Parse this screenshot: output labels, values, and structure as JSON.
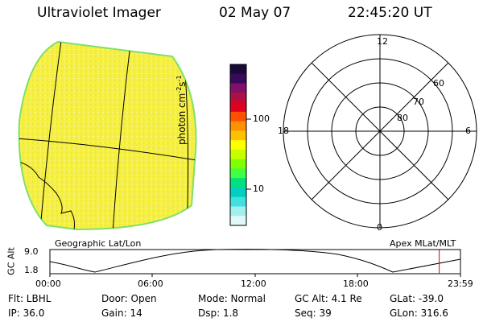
{
  "header": {
    "title": "Ultraviolet Imager",
    "date": "02 May 07",
    "time": "22:45:20 UT"
  },
  "colorbar": {
    "label": "photon cm",
    "label_exp1": "-2",
    "label_mid": "s",
    "label_exp2": "-1",
    "ticks": [
      "100",
      "10"
    ],
    "colors": [
      "#1a0a3a",
      "#3a0a5a",
      "#80106a",
      "#b01040",
      "#e00020",
      "#ff5000",
      "#ff9000",
      "#ffc000",
      "#ffff00",
      "#c8ff00",
      "#80ff00",
      "#40ff40",
      "#00e080",
      "#00d0c0",
      "#40e0e0",
      "#a0f0f0",
      "#e0f8f8"
    ]
  },
  "image": {
    "fill_color": "#f2ee3a",
    "edge_color": "#7fe06a",
    "caption": "Geographic Lat/Lon"
  },
  "polar": {
    "caption": "Apex MLat/MLT",
    "mlt_labels": {
      "top": "12",
      "bottom": "0",
      "left": "18",
      "right": "6"
    },
    "lat_labels": [
      "60",
      "70",
      "80"
    ]
  },
  "altitude_plot": {
    "ylabel": "GC Alt",
    "yticks": [
      "9.0",
      "1.8"
    ],
    "xticks": [
      "00:00",
      "06:00",
      "12:00",
      "18:00",
      "23:59"
    ],
    "marker_color": "#d00000",
    "marker_time_hours": 22.76
  },
  "status": {
    "flt": "Flt: LBHL",
    "ip": "IP: 36.0",
    "door": "Door: Open",
    "gain": "Gain: 14",
    "mode": "Mode: Normal",
    "dsp": "Dsp:    1.8",
    "gcalt": "GC Alt: 4.1 Re",
    "seq": "Seq: 39",
    "glat": "GLat: -39.0",
    "glon": "GLon: 316.6"
  }
}
